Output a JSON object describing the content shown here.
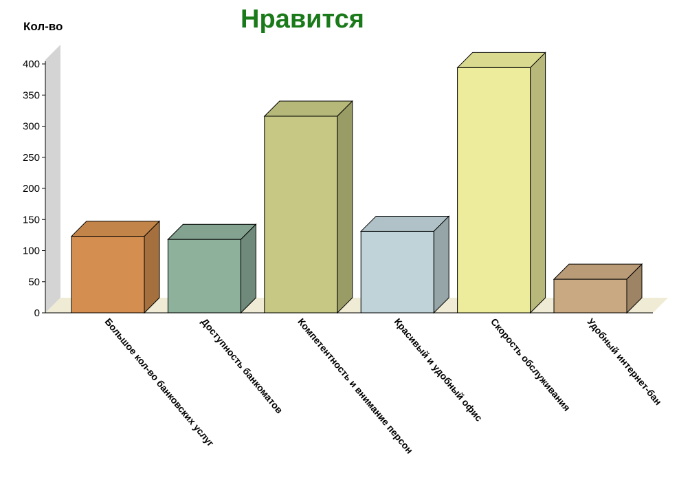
{
  "chart_data": {
    "type": "bar",
    "title": "Нравится",
    "ylabel": "Кол-во",
    "xlabel": "",
    "ylim": [
      0,
      400
    ],
    "yticks": [
      0,
      50,
      100,
      150,
      200,
      250,
      300,
      350,
      400
    ],
    "grid": false,
    "legend": "none",
    "style": "3d",
    "categories": [
      "Большое кол-во банковских услуг",
      "Доступность банкоматов",
      "Компетентность и внимание персон",
      "Красивый и удобный офис",
      "Скорость обслуживания",
      "Удобный интернет-бан"
    ],
    "values": [
      123,
      118,
      316,
      131,
      394,
      54
    ],
    "colors": [
      "#D48F50",
      "#8EB19C",
      "#C6C883",
      "#BFD3D8",
      "#ECEC9C",
      "#C9A981"
    ],
    "title_color": "#1A7A1A"
  }
}
